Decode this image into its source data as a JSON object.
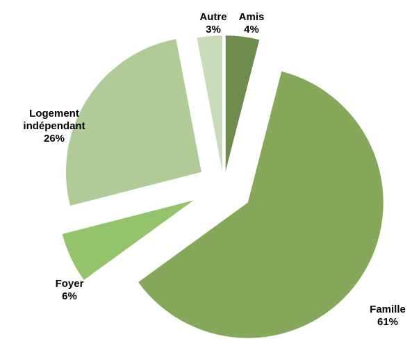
{
  "chart_data": {
    "type": "pie",
    "categories": [
      "Amis",
      "Famille",
      "Foyer",
      "Logement indépendant",
      "Autre"
    ],
    "values": [
      4,
      61,
      6,
      26,
      3
    ],
    "value_labels": [
      "4%",
      "61%",
      "6%",
      "26%",
      "3%"
    ],
    "colors": [
      "#6e8c4e",
      "#86a85a",
      "#93c36a",
      "#b0cb98",
      "#c8dcb9"
    ]
  }
}
